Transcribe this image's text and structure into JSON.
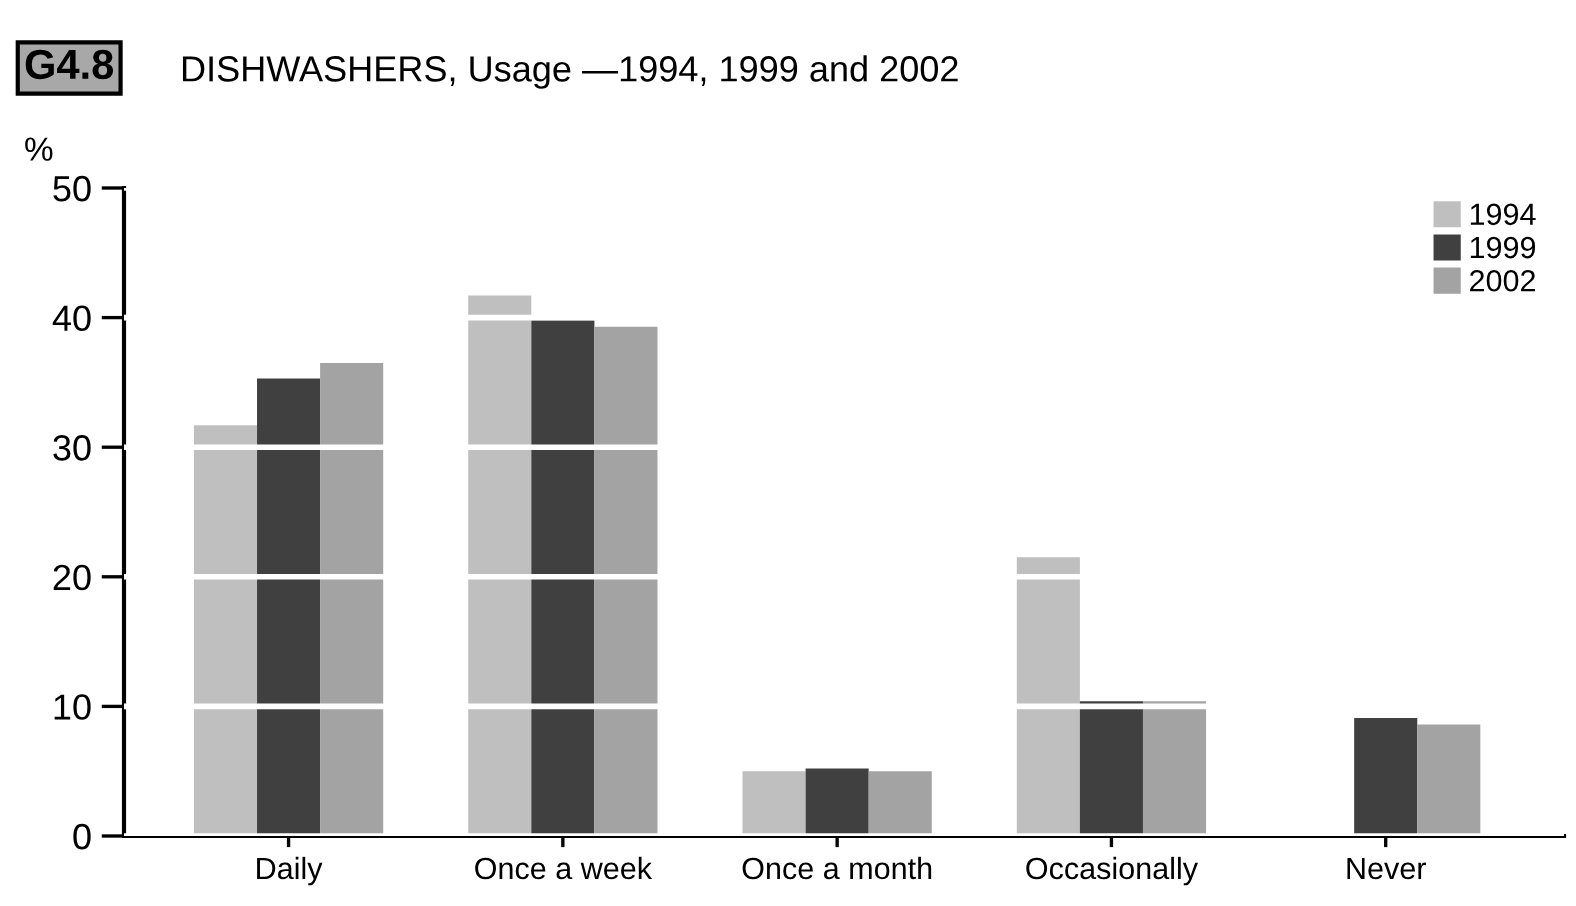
{
  "chart_data": {
    "type": "bar",
    "title": "DISHWASHERS, Usage —1994, 1999 and 2002",
    "ylabel": "%",
    "annotations": [
      "G4.8"
    ],
    "categories": [
      "Daily",
      "Once a week",
      "Once a month",
      "Occasionally",
      "Never"
    ],
    "series": [
      {
        "name": "1994",
        "color": "#bfbfbf",
        "values": [
          31.7,
          41.7,
          5.0,
          21.5,
          null
        ]
      },
      {
        "name": "1999",
        "color": "#404040",
        "values": [
          35.3,
          39.8,
          5.2,
          10.4,
          9.1
        ]
      },
      {
        "name": "2002",
        "color": "#a3a3a3",
        "values": [
          36.5,
          39.3,
          5.0,
          10.4,
          8.6
        ]
      }
    ],
    "ylim": [
      0,
      50
    ],
    "yticks": [
      0,
      10,
      20,
      30,
      40,
      50
    ],
    "grid": "y",
    "legend": "top right"
  }
}
